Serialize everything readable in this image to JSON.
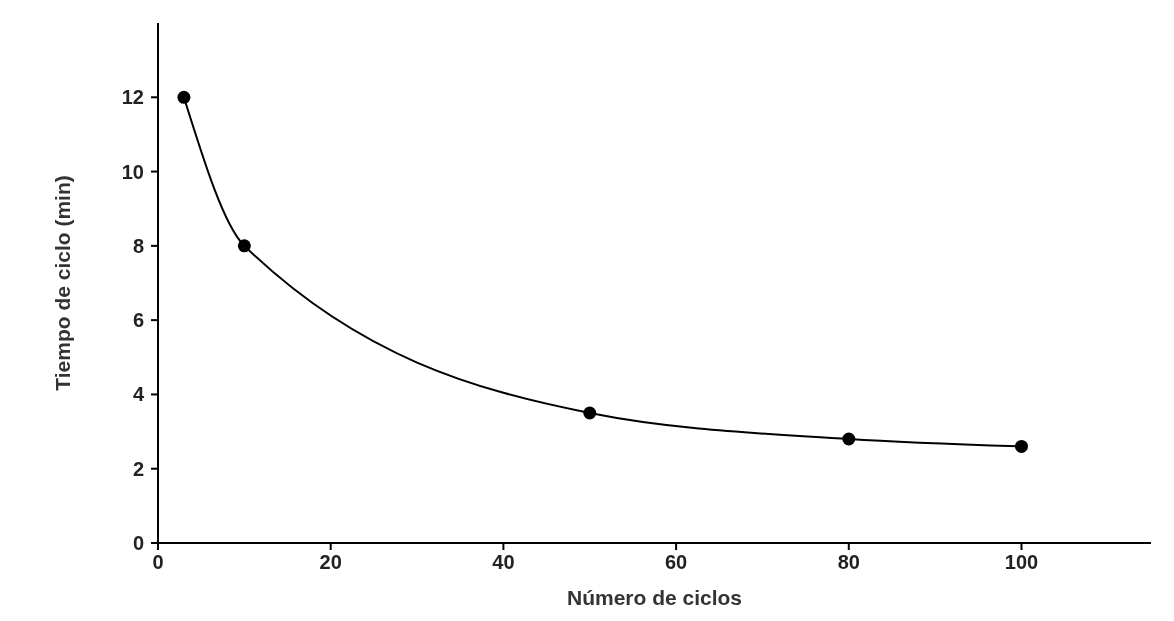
{
  "chart_data": {
    "type": "line",
    "xlabel": "Número de ciclos",
    "ylabel": "Tiempo de ciclo  (min)",
    "x": [
      3,
      10,
      50,
      80,
      100
    ],
    "series": [
      {
        "color": "#000000",
        "values": [
          12,
          8,
          3.5,
          2.8,
          2.6
        ]
      }
    ],
    "xlim": [
      0,
      115
    ],
    "ylim": [
      0,
      14
    ],
    "xticks": [
      0,
      20,
      40,
      60,
      80,
      100
    ],
    "yticks": [
      0,
      2,
      4,
      6,
      8,
      10,
      12
    ],
    "marker": "circle",
    "line_style": "solid",
    "grid": false
  }
}
